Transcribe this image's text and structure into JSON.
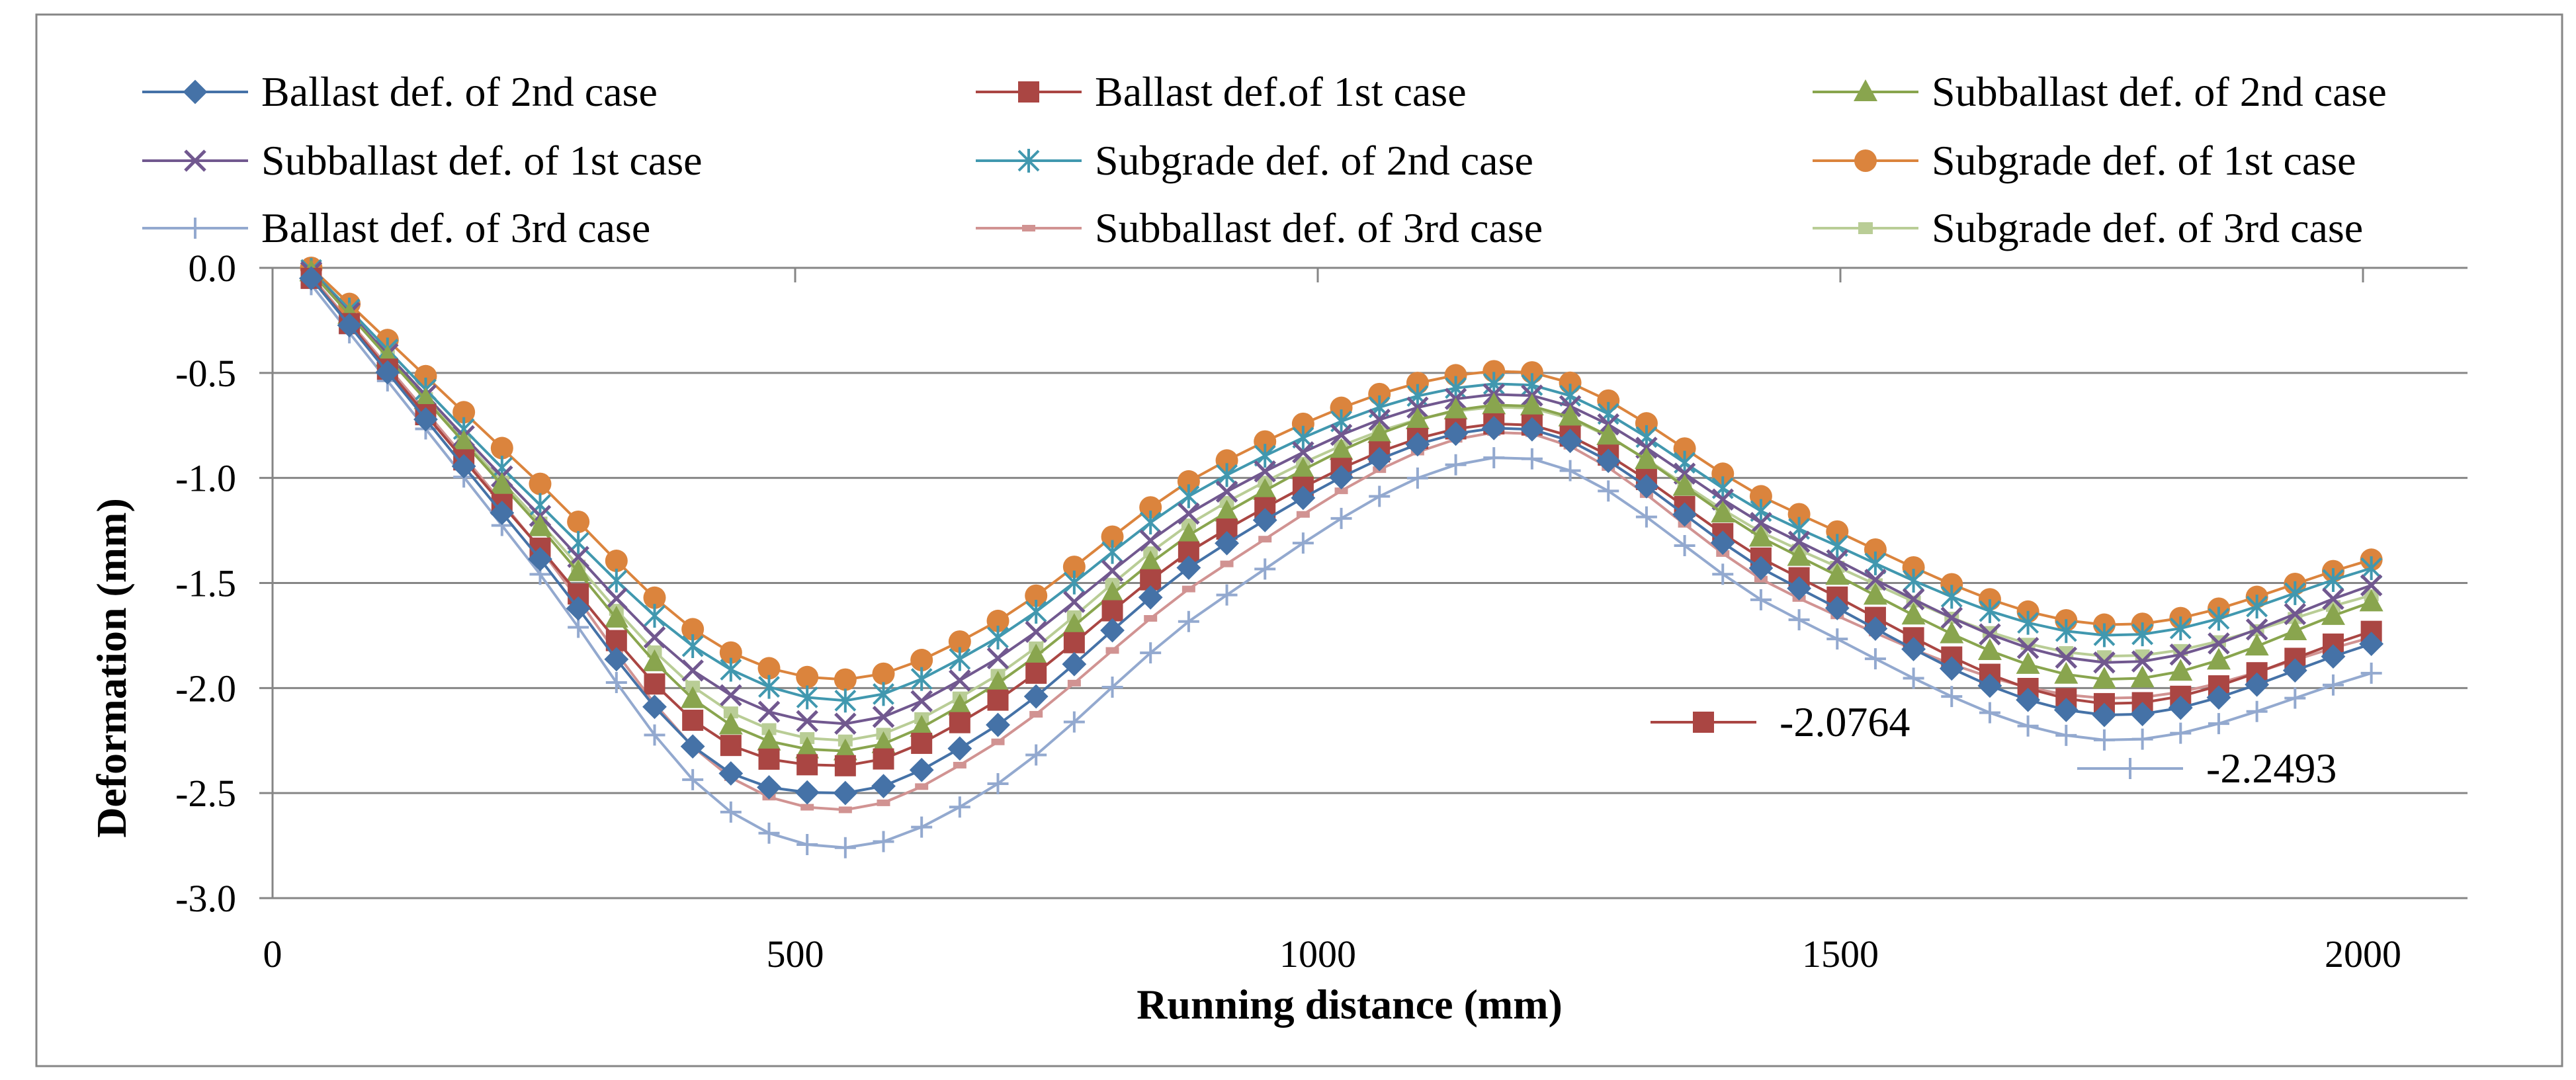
{
  "chart_data": {
    "type": "line",
    "title": "",
    "xlabel": "Running distance (mm)",
    "ylabel": "Deformation (mm)",
    "xlim": [
      0,
      2100
    ],
    "ylim": [
      -3.0,
      0.0
    ],
    "xticks": [
      0,
      500,
      1000,
      1500,
      2000
    ],
    "yticks": [
      0.0,
      -0.5,
      -1.0,
      -1.5,
      -2.0,
      -2.5,
      -3.0
    ],
    "xtick_labels": [
      "0",
      "500",
      "1000",
      "1500",
      "2000"
    ],
    "ytick_labels": [
      "0.0",
      "-0.5",
      "-1.0",
      "-1.5",
      "-2.0",
      "-2.5",
      "-3.0"
    ],
    "grid": "horizontal",
    "legend_position": "top",
    "x_start": 37,
    "x_step": 36.5,
    "num_points": 55,
    "series": [
      {
        "name": "Ballast def. of 2nd case",
        "color": "#4572A7",
        "marker": "diamond",
        "key_points": [
          [
            37,
            -0.05
          ],
          [
            250,
            -1.35
          ],
          [
            420,
            -2.35
          ],
          [
            545,
            -2.5
          ],
          [
            680,
            -2.22
          ],
          [
            900,
            -1.35
          ],
          [
            1185,
            -0.76
          ],
          [
            1450,
            -1.5
          ],
          [
            1765,
            -2.13
          ],
          [
            2015,
            -1.78
          ]
        ]
      },
      {
        "name": "Ballast def.of 1st case",
        "color": "#AA4643",
        "marker": "square",
        "key_points": [
          [
            37,
            -0.05
          ],
          [
            250,
            -1.3
          ],
          [
            420,
            -2.22
          ],
          [
            545,
            -2.37
          ],
          [
            680,
            -2.1
          ],
          [
            900,
            -1.28
          ],
          [
            1185,
            -0.74
          ],
          [
            1450,
            -1.45
          ],
          [
            1765,
            -2.076
          ],
          [
            2015,
            -1.72
          ]
        ]
      },
      {
        "name": "Subballast def. of 2nd case",
        "color": "#89A54E",
        "marker": "triangle",
        "key_points": [
          [
            37,
            -0.02
          ],
          [
            250,
            -1.2
          ],
          [
            420,
            -2.12
          ],
          [
            545,
            -2.3
          ],
          [
            680,
            -2.02
          ],
          [
            900,
            -1.2
          ],
          [
            1185,
            -0.65
          ],
          [
            1450,
            -1.35
          ],
          [
            1765,
            -1.96
          ],
          [
            2015,
            -1.58
          ]
        ]
      },
      {
        "name": "Subballast def. of 1st case",
        "color": "#71588F",
        "marker": "x",
        "key_points": [
          [
            37,
            -0.02
          ],
          [
            250,
            -1.15
          ],
          [
            420,
            -1.98
          ],
          [
            545,
            -2.17
          ],
          [
            680,
            -1.9
          ],
          [
            900,
            -1.1
          ],
          [
            1185,
            -0.6
          ],
          [
            1450,
            -1.28
          ],
          [
            1765,
            -1.88
          ],
          [
            2015,
            -1.5
          ]
        ]
      },
      {
        "name": "Subgrade def. of 2nd case",
        "color": "#4198AF",
        "marker": "asterisk",
        "key_points": [
          [
            37,
            -0.01
          ],
          [
            250,
            -1.1
          ],
          [
            420,
            -1.86
          ],
          [
            545,
            -2.06
          ],
          [
            680,
            -1.8
          ],
          [
            900,
            -1.02
          ],
          [
            1185,
            -0.55
          ],
          [
            1450,
            -1.22
          ],
          [
            1765,
            -1.75
          ],
          [
            2015,
            -1.42
          ]
        ]
      },
      {
        "name": "Subgrade def. of 1st case",
        "color": "#DB843D",
        "marker": "circle",
        "key_points": [
          [
            37,
            0.0
          ],
          [
            250,
            -1.0
          ],
          [
            420,
            -1.78
          ],
          [
            545,
            -1.96
          ],
          [
            680,
            -1.72
          ],
          [
            900,
            -0.95
          ],
          [
            1185,
            -0.49
          ],
          [
            1450,
            -1.15
          ],
          [
            1765,
            -1.7
          ],
          [
            2015,
            -1.38
          ]
        ]
      },
      {
        "name": "Ballast def. of 3rd case",
        "color": "#93A9CF",
        "marker": "plus",
        "key_points": [
          [
            37,
            -0.08
          ],
          [
            250,
            -1.42
          ],
          [
            420,
            -2.52
          ],
          [
            545,
            -2.76
          ],
          [
            680,
            -2.5
          ],
          [
            900,
            -1.6
          ],
          [
            1185,
            -0.9
          ],
          [
            1450,
            -1.65
          ],
          [
            1765,
            -2.249
          ],
          [
            2015,
            -1.92
          ]
        ]
      },
      {
        "name": "Subballast def. of 3rd case",
        "color": "#D19392",
        "marker": "dash",
        "key_points": [
          [
            37,
            -0.04
          ],
          [
            250,
            -1.3
          ],
          [
            420,
            -2.36
          ],
          [
            545,
            -2.58
          ],
          [
            680,
            -2.3
          ],
          [
            900,
            -1.45
          ],
          [
            1185,
            -0.78
          ],
          [
            1450,
            -1.55
          ],
          [
            1765,
            -2.05
          ],
          [
            2015,
            -1.75
          ]
        ]
      },
      {
        "name": "Subgrade def. of 3rd case",
        "color": "#B9CD96",
        "marker": "smallsquare",
        "key_points": [
          [
            37,
            -0.02
          ],
          [
            250,
            -1.18
          ],
          [
            420,
            -2.06
          ],
          [
            545,
            -2.25
          ],
          [
            680,
            -1.98
          ],
          [
            900,
            -1.15
          ],
          [
            1185,
            -0.66
          ],
          [
            1450,
            -1.32
          ],
          [
            1765,
            -1.85
          ],
          [
            2015,
            -1.55
          ]
        ]
      }
    ],
    "annotations": [
      {
        "text": "-2.0764",
        "series_index": 1
      },
      {
        "text": "-2.2493",
        "series_index": 6
      }
    ]
  }
}
